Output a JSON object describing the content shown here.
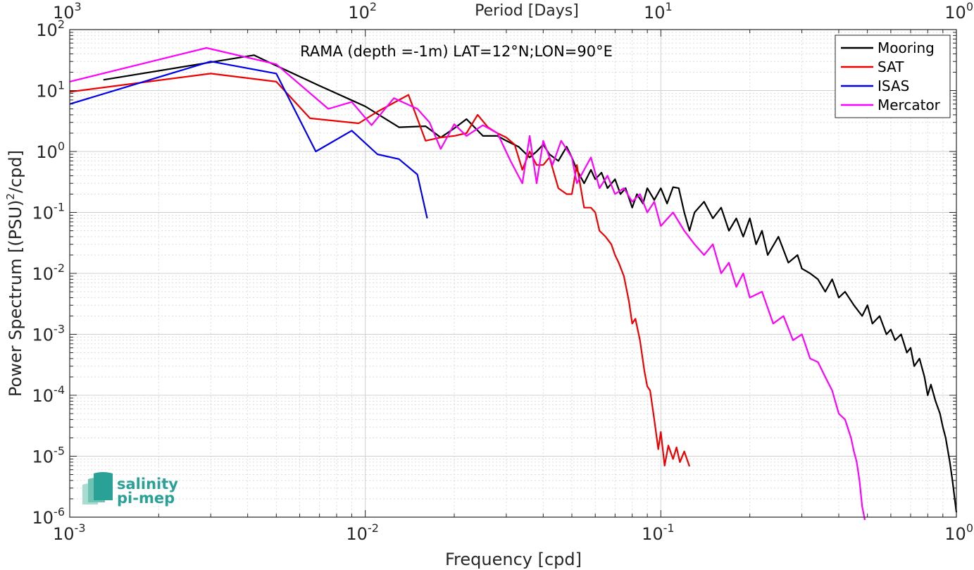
{
  "chart_data": {
    "type": "line",
    "title": "",
    "annotation": "RAMA (depth =-1m) LAT=12°N;LON=90°E",
    "xlabel": "Frequency [cpd]",
    "ylabel": "Power Spectrum [(PSU)",
    "ylabel_sup": "2",
    "ylabel_tail": "/cpd]",
    "x2label": "Period [Days]",
    "xscale": "log",
    "yscale": "log",
    "xlim": [
      0.001,
      1
    ],
    "ylim": [
      1e-06,
      100
    ],
    "grid": true,
    "legend_position": "top-right",
    "x_ticks": [
      {
        "value": 0.001,
        "base": "10",
        "exp": "-3"
      },
      {
        "value": 0.01,
        "base": "10",
        "exp": "-2"
      },
      {
        "value": 0.1,
        "base": "10",
        "exp": "-1"
      },
      {
        "value": 1,
        "base": "10",
        "exp": "0"
      }
    ],
    "x2_ticks": [
      {
        "value": 0.001,
        "base": "10",
        "exp": "3"
      },
      {
        "value": 0.01,
        "base": "10",
        "exp": "2"
      },
      {
        "value": 0.1,
        "base": "10",
        "exp": "1"
      },
      {
        "value": 1,
        "base": "10",
        "exp": "0"
      }
    ],
    "y_ticks": [
      {
        "value": 1e-06,
        "base": "10",
        "exp": "-6"
      },
      {
        "value": 1e-05,
        "base": "10",
        "exp": "-5"
      },
      {
        "value": 0.0001,
        "base": "10",
        "exp": "-4"
      },
      {
        "value": 0.001,
        "base": "10",
        "exp": "-3"
      },
      {
        "value": 0.01,
        "base": "10",
        "exp": "-2"
      },
      {
        "value": 0.1,
        "base": "10",
        "exp": "-1"
      },
      {
        "value": 1,
        "base": "10",
        "exp": "0"
      },
      {
        "value": 10,
        "base": "10",
        "exp": "1"
      },
      {
        "value": 100,
        "base": "10",
        "exp": "2"
      }
    ],
    "series": [
      {
        "name": "Mooring",
        "color": "#000000",
        "x": [
          0.0013,
          0.0042,
          0.0048,
          0.007,
          0.01,
          0.013,
          0.016,
          0.018,
          0.02,
          0.022,
          0.025,
          0.028,
          0.03,
          0.033,
          0.036,
          0.038,
          0.04,
          0.042,
          0.045,
          0.048,
          0.05,
          0.052,
          0.055,
          0.058,
          0.06,
          0.063,
          0.066,
          0.07,
          0.073,
          0.076,
          0.08,
          0.083,
          0.087,
          0.09,
          0.095,
          0.1,
          0.105,
          0.11,
          0.115,
          0.12,
          0.125,
          0.13,
          0.14,
          0.15,
          0.16,
          0.17,
          0.18,
          0.19,
          0.2,
          0.21,
          0.22,
          0.23,
          0.25,
          0.27,
          0.29,
          0.3,
          0.32,
          0.34,
          0.36,
          0.38,
          0.4,
          0.42,
          0.45,
          0.48,
          0.5,
          0.52,
          0.55,
          0.58,
          0.6,
          0.62,
          0.65,
          0.68,
          0.7,
          0.72,
          0.75,
          0.78,
          0.8,
          0.82,
          0.85,
          0.88,
          0.9,
          0.92,
          0.95,
          0.97,
          1.0
        ],
        "y": [
          15,
          38,
          28,
          12,
          5.5,
          2.5,
          2.6,
          1.7,
          2.4,
          3.4,
          1.8,
          1.8,
          1.5,
          1.2,
          0.8,
          1.0,
          1.3,
          0.9,
          0.7,
          1.2,
          0.8,
          0.5,
          0.3,
          0.5,
          0.35,
          0.45,
          0.25,
          0.35,
          0.2,
          0.25,
          0.12,
          0.2,
          0.14,
          0.25,
          0.16,
          0.25,
          0.14,
          0.26,
          0.25,
          0.1,
          0.05,
          0.1,
          0.15,
          0.08,
          0.12,
          0.05,
          0.08,
          0.04,
          0.08,
          0.03,
          0.05,
          0.02,
          0.04,
          0.015,
          0.02,
          0.012,
          0.01,
          0.008,
          0.005,
          0.008,
          0.004,
          0.005,
          0.003,
          0.002,
          0.003,
          0.0015,
          0.002,
          0.001,
          0.0012,
          0.0008,
          0.001,
          0.0005,
          0.0006,
          0.0003,
          0.0004,
          0.0002,
          0.0001,
          0.00015,
          8e-05,
          5e-05,
          3e-05,
          2e-05,
          8e-06,
          4e-06,
          1.2e-06
        ]
      },
      {
        "name": "SAT",
        "color": "#ee0000",
        "x": [
          0.001,
          0.003,
          0.005,
          0.0065,
          0.0095,
          0.011,
          0.014,
          0.016,
          0.018,
          0.02,
          0.022,
          0.024,
          0.026,
          0.028,
          0.03,
          0.032,
          0.034,
          0.036,
          0.038,
          0.04,
          0.042,
          0.045,
          0.048,
          0.05,
          0.052,
          0.055,
          0.058,
          0.06,
          0.062,
          0.065,
          0.068,
          0.07,
          0.072,
          0.075,
          0.078,
          0.08,
          0.082,
          0.085,
          0.088,
          0.09,
          0.092,
          0.095,
          0.098,
          0.1,
          0.103,
          0.106,
          0.11,
          0.113,
          0.116,
          0.12,
          0.125
        ],
        "y": [
          9.5,
          19,
          14,
          3.5,
          2.9,
          4.5,
          8.5,
          1.5,
          1.7,
          1.8,
          2.0,
          4.0,
          2.5,
          2.0,
          1.7,
          1.3,
          0.5,
          1.0,
          0.6,
          0.6,
          0.8,
          0.25,
          0.2,
          0.2,
          0.6,
          0.12,
          0.12,
          0.1,
          0.05,
          0.04,
          0.03,
          0.02,
          0.015,
          0.009,
          0.0035,
          0.0015,
          0.0018,
          0.0008,
          0.00025,
          0.00014,
          0.00012,
          4e-05,
          1.3e-05,
          2.5e-05,
          7e-06,
          1.5e-05,
          9e-06,
          1.4e-05,
          8e-06,
          1.2e-05,
          6.8e-06
        ]
      },
      {
        "name": "ISAS",
        "color": "#0000ee",
        "x": [
          0.001,
          0.003,
          0.005,
          0.0068,
          0.009,
          0.011,
          0.013,
          0.015,
          0.0162
        ],
        "y": [
          6,
          30,
          19,
          1.0,
          2.2,
          0.9,
          0.75,
          0.42,
          0.08
        ]
      },
      {
        "name": "Mercator",
        "color": "#ff00ff",
        "x": [
          0.001,
          0.0029,
          0.005,
          0.0075,
          0.009,
          0.0105,
          0.0125,
          0.015,
          0.0165,
          0.018,
          0.02,
          0.022,
          0.025,
          0.028,
          0.031,
          0.034,
          0.036,
          0.038,
          0.04,
          0.043,
          0.046,
          0.05,
          0.052,
          0.055,
          0.058,
          0.062,
          0.066,
          0.07,
          0.075,
          0.08,
          0.085,
          0.09,
          0.095,
          0.1,
          0.11,
          0.12,
          0.13,
          0.14,
          0.15,
          0.16,
          0.17,
          0.18,
          0.19,
          0.2,
          0.22,
          0.24,
          0.26,
          0.28,
          0.3,
          0.32,
          0.34,
          0.36,
          0.38,
          0.4,
          0.42,
          0.44,
          0.45,
          0.46,
          0.47,
          0.48,
          0.49
        ],
        "y": [
          14,
          50,
          27,
          5.0,
          6.5,
          2.7,
          7.5,
          5.0,
          3.0,
          1.1,
          2.8,
          1.8,
          2.7,
          2.0,
          0.7,
          0.3,
          1.8,
          0.3,
          1.5,
          0.6,
          1.5,
          0.8,
          0.3,
          0.5,
          0.8,
          0.25,
          0.4,
          0.2,
          0.25,
          0.15,
          0.2,
          0.1,
          0.15,
          0.06,
          0.1,
          0.05,
          0.03,
          0.02,
          0.03,
          0.01,
          0.015,
          0.006,
          0.01,
          0.004,
          0.005,
          0.0015,
          0.002,
          0.0008,
          0.001,
          0.0004,
          0.00035,
          0.0002,
          0.00012,
          5e-05,
          4e-05,
          2e-05,
          1.2e-05,
          8e-06,
          4e-06,
          1.5e-06,
          9e-07
        ]
      }
    ]
  },
  "logo": {
    "line1": "salinity",
    "line2": "pi-mep"
  }
}
